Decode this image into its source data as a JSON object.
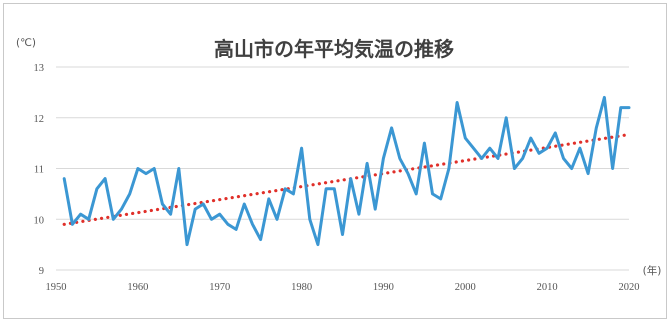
{
  "chart_data": {
    "type": "line",
    "title": "高山市の年平均気温の推移",
    "ylabel": "(℃)",
    "xlabel": "(年)",
    "xlim": [
      1950,
      2020
    ],
    "ylim": [
      9,
      13
    ],
    "xticks": [
      1950,
      1960,
      1970,
      1980,
      1990,
      2000,
      2010,
      2020
    ],
    "yticks": [
      9,
      10,
      11,
      12,
      13
    ],
    "grid": true,
    "colors": {
      "series": "#3b97d3",
      "trend": "#e0302a",
      "grid": "#d9d9d9"
    },
    "series": [
      {
        "x": [
          1951,
          1952,
          1953,
          1954,
          1955,
          1956,
          1957,
          1958,
          1959,
          1960,
          1961,
          1962,
          1963,
          1964,
          1965,
          1966,
          1967,
          1968,
          1969,
          1970,
          1971,
          1972,
          1973,
          1974,
          1975,
          1976,
          1977,
          1978,
          1979,
          1980,
          1981,
          1982,
          1983,
          1984,
          1985,
          1986,
          1987,
          1988,
          1989,
          1990,
          1991,
          1992,
          1993,
          1994,
          1995,
          1996,
          1997,
          1998,
          1999,
          2000,
          2001,
          2002,
          2003,
          2004,
          2005,
          2006,
          2007,
          2008,
          2009,
          2010,
          2011,
          2012,
          2013,
          2014,
          2015,
          2016,
          2017,
          2018,
          2019,
          2020
        ],
        "values": [
          10.8,
          9.9,
          10.1,
          10.0,
          10.6,
          10.8,
          10.0,
          10.2,
          10.5,
          11.0,
          10.9,
          11.0,
          10.3,
          10.1,
          11.0,
          9.5,
          10.2,
          10.3,
          10.0,
          10.1,
          9.9,
          9.8,
          10.3,
          9.9,
          9.6,
          10.4,
          10.0,
          10.6,
          10.5,
          11.4,
          10.0,
          9.5,
          10.6,
          10.6,
          9.7,
          10.8,
          10.1,
          11.1,
          10.2,
          11.2,
          11.8,
          11.2,
          10.9,
          10.5,
          11.5,
          10.5,
          10.4,
          11.0,
          12.3,
          11.6,
          11.4,
          11.2,
          11.4,
          11.2,
          12.0,
          11.0,
          11.2,
          11.6,
          11.3,
          11.4,
          11.7,
          11.2,
          11.0,
          11.4,
          10.9,
          11.8,
          12.4,
          11.0,
          12.2,
          12.2
        ]
      },
      {
        "type": "trend",
        "x": [
          1951,
          2020
        ],
        "values": [
          9.9,
          11.67
        ]
      }
    ]
  }
}
